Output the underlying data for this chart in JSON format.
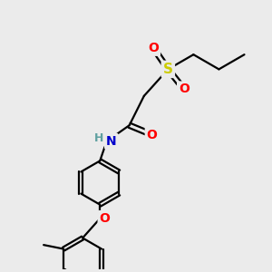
{
  "bg_color": "#ebebeb",
  "atom_colors": {
    "C": "#000000",
    "N": "#0000cc",
    "O": "#ff0000",
    "S": "#cccc00",
    "H": "#5fa0a0"
  },
  "bond_color": "#000000",
  "bond_width": 1.6,
  "figsize": [
    3.0,
    3.0
  ],
  "dpi": 100,
  "xlim": [
    0,
    10
  ],
  "ylim": [
    0,
    10
  ]
}
